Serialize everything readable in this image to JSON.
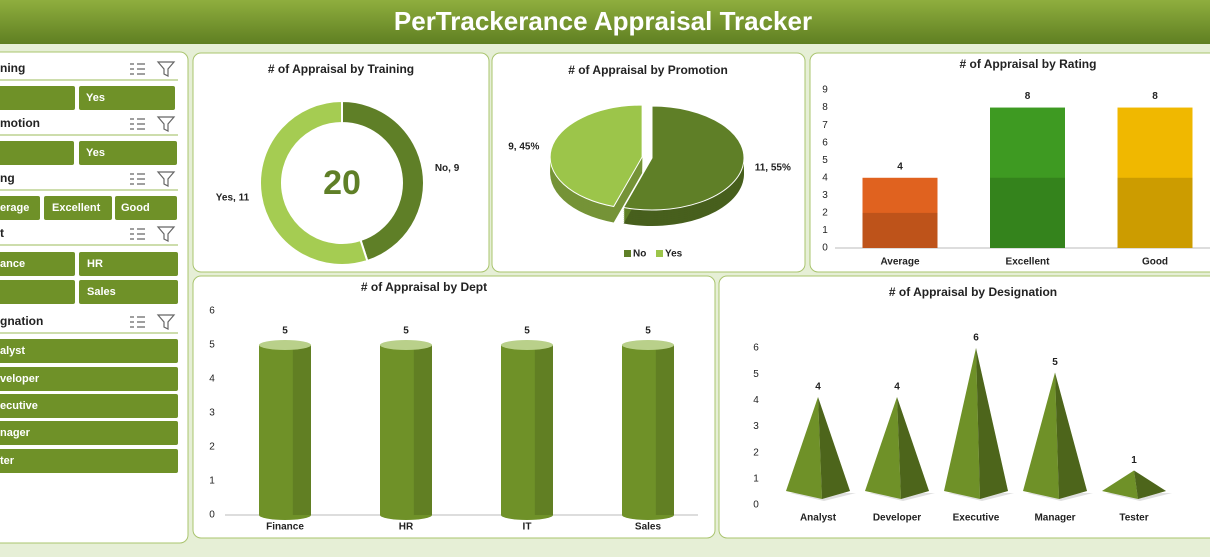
{
  "header": {
    "title": "PerTrackerance Appraisal Tracker"
  },
  "slicers": [
    {
      "title": "ning",
      "buttons": [
        "Yes"
      ]
    },
    {
      "title": "motion",
      "buttons": [
        "Yes"
      ]
    },
    {
      "title": "ng",
      "buttons": [
        "erage",
        "Excellent",
        "Good"
      ]
    },
    {
      "title": "t",
      "buttons": [
        "ance",
        "HR",
        "Sales"
      ]
    },
    {
      "title": "gnation",
      "buttons": [
        "alyst",
        "veloper",
        "ecutive",
        "nager",
        "ter"
      ]
    }
  ],
  "chart_data": [
    {
      "type": "doughnut",
      "title": "# of Appraisal by Training",
      "categories": [
        "No",
        "Yes"
      ],
      "values": [
        9,
        11
      ],
      "value_labels": [
        "No, 9",
        "Yes, 11"
      ],
      "colors": [
        "#5f7f27",
        "#a5cc52"
      ],
      "total": 20
    },
    {
      "type": "pie",
      "shape": "3d",
      "title": "# of Appraisal by Promotion",
      "categories": [
        "No",
        "Yes"
      ],
      "values": [
        11,
        9
      ],
      "value_labels": [
        "11, 55%",
        "9, 45%"
      ],
      "colors": [
        "#5f7f27",
        "#9cc54a"
      ],
      "legend": "bottom"
    },
    {
      "type": "bar",
      "title": "# of Appraisal by Rating",
      "categories": [
        "Average",
        "Excellent",
        "Good"
      ],
      "values": [
        4,
        8,
        8
      ],
      "colors": [
        "#e0621f",
        "#3e9a22",
        "#f0b800"
      ],
      "ylim": [
        0,
        9
      ],
      "yticks": [
        0,
        1,
        2,
        3,
        4,
        5,
        6,
        7,
        8,
        9
      ]
    },
    {
      "type": "bar",
      "shape": "cylinder",
      "title": "# of Appraisal by Dept",
      "categories": [
        "Finance",
        "HR",
        "IT",
        "Sales"
      ],
      "values": [
        5,
        5,
        5,
        5
      ],
      "color": "#6f9128",
      "ylim": [
        0,
        6
      ],
      "yticks": [
        0,
        1,
        2,
        3,
        4,
        5,
        6
      ]
    },
    {
      "type": "bar",
      "shape": "pyramid",
      "title": "# of Appraisal by Designation",
      "categories": [
        "Analyst",
        "Developer",
        "Executive",
        "Manager",
        "Tester"
      ],
      "values": [
        4,
        4,
        6,
        5,
        1
      ],
      "color": "#6f9128",
      "ylim": [
        0,
        6
      ],
      "yticks": [
        0,
        1,
        2,
        3,
        4,
        5,
        6
      ]
    }
  ]
}
